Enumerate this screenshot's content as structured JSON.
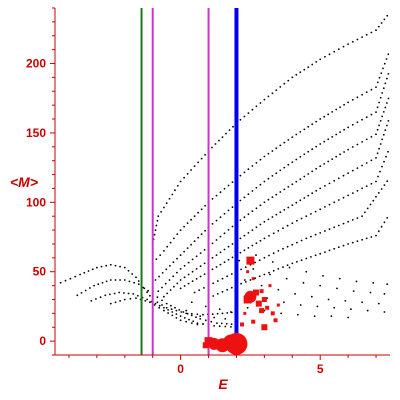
{
  "chart_data": {
    "type": "scatter",
    "title": "",
    "xlabel": "E",
    "ylabel": "<M>",
    "xlim": [
      -4.5,
      7.5
    ],
    "ylim": [
      -10,
      240
    ],
    "xticks": [
      0,
      5
    ],
    "yticks": [
      0,
      50,
      100,
      150,
      200
    ],
    "grid": false,
    "colors": {
      "axis": "#cc0000",
      "branches": "#000000",
      "red_markers": "#ee1111",
      "green_line": "#1a7a1a",
      "magenta_lines": "#cc33cc",
      "blue_line": "#0000ee"
    },
    "series": [
      {
        "kind": "branches",
        "color": "#000000",
        "curves": [
          [
            [
              -4.3,
              42
            ],
            [
              -3.6,
              48
            ],
            [
              -3.0,
              53
            ],
            [
              -2.5,
              55
            ],
            [
              -2.0,
              53
            ],
            [
              -1.6,
              46
            ],
            [
              -1.3,
              38
            ],
            [
              -1.0,
              30
            ],
            [
              -0.5,
              24
            ],
            [
              0.2,
              20
            ],
            [
              0.8,
              19
            ],
            [
              1.5,
              20
            ],
            [
              2.0,
              21
            ]
          ],
          [
            [
              -3.7,
              33
            ],
            [
              -3.1,
              40
            ],
            [
              -2.5,
              44
            ],
            [
              -2.0,
              44
            ],
            [
              -1.5,
              41
            ],
            [
              -1.0,
              34
            ],
            [
              -0.5,
              27
            ],
            [
              0.1,
              21
            ],
            [
              0.7,
              16
            ],
            [
              1.3,
              13
            ],
            [
              2.0,
              12
            ]
          ],
          [
            [
              -3.2,
              29
            ],
            [
              -2.7,
              33
            ],
            [
              -2.2,
              35
            ],
            [
              -1.7,
              34
            ],
            [
              -1.2,
              30
            ],
            [
              -0.6,
              24
            ],
            [
              0.0,
              18
            ],
            [
              0.6,
              13
            ],
            [
              1.2,
              11
            ],
            [
              2.0,
              10
            ]
          ],
          [
            [
              -2.5,
              27
            ],
            [
              -2.0,
              30
            ],
            [
              -1.6,
              31
            ],
            [
              -1.1,
              28
            ],
            [
              -0.6,
              22
            ],
            [
              0.0,
              15
            ],
            [
              0.6,
              12
            ],
            [
              1.2,
              13
            ]
          ],
          [
            [
              -1.0,
              70
            ],
            [
              -0.8,
              90
            ],
            [
              0.0,
              115
            ],
            [
              1.0,
              137
            ],
            [
              2.0,
              157
            ],
            [
              3.0,
              174
            ],
            [
              4.0,
              190
            ],
            [
              5.0,
              203
            ],
            [
              6.0,
              214
            ],
            [
              7.0,
              224
            ],
            [
              7.5,
              237
            ]
          ],
          [
            [
              -1.0,
              56
            ],
            [
              -0.6,
              65
            ],
            [
              0.0,
              80
            ],
            [
              1.0,
              100
            ],
            [
              2.0,
              117
            ],
            [
              3.0,
              133
            ],
            [
              4.0,
              147
            ],
            [
              5.0,
              160
            ],
            [
              6.0,
              172
            ],
            [
              7.0,
              183
            ],
            [
              7.5,
              210
            ]
          ],
          [
            [
              -0.9,
              44
            ],
            [
              0.0,
              62
            ],
            [
              1.0,
              82
            ],
            [
              2.0,
              99
            ],
            [
              3.0,
              115
            ],
            [
              4.0,
              129
            ],
            [
              5.0,
              142
            ],
            [
              6.0,
              154
            ],
            [
              7.0,
              165
            ],
            [
              7.5,
              196
            ]
          ],
          [
            [
              -0.8,
              36
            ],
            [
              0.0,
              52
            ],
            [
              1.0,
              68
            ],
            [
              2.0,
              85
            ],
            [
              3.0,
              100
            ],
            [
              4.0,
              113
            ],
            [
              5.0,
              126
            ],
            [
              6.0,
              138
            ],
            [
              7.0,
              149
            ],
            [
              7.5,
              178
            ]
          ],
          [
            [
              -0.6,
              32
            ],
            [
              0.0,
              44
            ],
            [
              1.0,
              58
            ],
            [
              2.0,
              72
            ],
            [
              3.0,
              86
            ],
            [
              4.0,
              98
            ],
            [
              5.0,
              110
            ],
            [
              6.0,
              121
            ],
            [
              7.0,
              132
            ],
            [
              7.5,
              162
            ]
          ],
          [
            [
              0.0,
              38
            ],
            [
              1.0,
              50
            ],
            [
              2.0,
              62
            ],
            [
              3.0,
              74
            ],
            [
              4.0,
              85
            ],
            [
              5.0,
              95
            ],
            [
              6.0,
              105
            ],
            [
              7.0,
              115
            ],
            [
              7.5,
              140
            ]
          ],
          [
            [
              0.5,
              35
            ],
            [
              1.5,
              45
            ],
            [
              2.5,
              55
            ],
            [
              3.5,
              65
            ],
            [
              4.5,
              74
            ],
            [
              5.5,
              82
            ],
            [
              6.5,
              90
            ],
            [
              7.5,
              118
            ]
          ],
          [
            [
              1.0,
              31
            ],
            [
              2.0,
              40
            ],
            [
              3.0,
              48
            ],
            [
              4.0,
              56
            ],
            [
              5.0,
              63
            ],
            [
              6.0,
              70
            ],
            [
              7.0,
              76
            ],
            [
              7.5,
              92
            ]
          ]
        ],
        "scatter": [
          [
            2.1,
            58
          ],
          [
            2.6,
            52
          ],
          [
            3.2,
            48
          ],
          [
            3.8,
            45
          ],
          [
            4.4,
            42
          ],
          [
            5.0,
            40
          ],
          [
            5.6,
            38
          ],
          [
            6.2,
            36
          ],
          [
            6.8,
            35
          ],
          [
            7.3,
            34
          ],
          [
            2.3,
            44
          ],
          [
            2.9,
            40
          ],
          [
            3.5,
            37
          ],
          [
            4.1,
            34
          ],
          [
            4.7,
            32
          ],
          [
            5.3,
            30
          ],
          [
            5.9,
            29
          ],
          [
            6.5,
            28
          ],
          [
            7.1,
            27
          ],
          [
            2.5,
            34
          ],
          [
            3.1,
            31
          ],
          [
            3.7,
            28
          ],
          [
            4.3,
            26
          ],
          [
            4.9,
            25
          ],
          [
            5.5,
            24
          ],
          [
            6.1,
            23
          ],
          [
            6.7,
            22
          ],
          [
            7.3,
            21
          ],
          [
            2.4,
            24
          ],
          [
            3.0,
            22
          ],
          [
            3.6,
            20
          ],
          [
            4.2,
            19
          ],
          [
            4.8,
            18
          ],
          [
            5.4,
            18
          ],
          [
            6.0,
            17
          ],
          [
            2.7,
            62
          ],
          [
            3.3,
            57
          ],
          [
            3.9,
            53
          ],
          [
            4.5,
            50
          ],
          [
            5.1,
            47
          ],
          [
            5.7,
            45
          ],
          [
            6.3,
            43
          ],
          [
            6.9,
            42
          ],
          [
            7.4,
            41
          ],
          [
            0.4,
            28
          ],
          [
            0.9,
            25
          ],
          [
            1.4,
            23
          ],
          [
            1.8,
            21
          ],
          [
            0.2,
            22
          ],
          [
            0.7,
            18
          ],
          [
            1.2,
            17
          ],
          [
            1.6,
            16
          ]
        ]
      },
      {
        "kind": "markers",
        "color": "#ee1111",
        "points": [
          {
            "x": 2.0,
            "y": -2,
            "size": 11
          },
          {
            "x": 1.8,
            "y": -1,
            "size": 8
          },
          {
            "x": 1.5,
            "y": -3,
            "size": 7
          },
          {
            "x": 1.2,
            "y": -2,
            "size": 6
          },
          {
            "x": 1.0,
            "y": 0,
            "size": 4
          },
          {
            "x": 0.9,
            "y": -3,
            "size": 3
          },
          {
            "x": 2.5,
            "y": 58,
            "size": 4
          },
          {
            "x": 2.5,
            "y": 32,
            "size": 6
          },
          {
            "x": 2.4,
            "y": 30,
            "size": 4
          },
          {
            "x": 2.7,
            "y": 35,
            "size": 3
          },
          {
            "x": 2.8,
            "y": 27,
            "size": 3
          },
          {
            "x": 3.0,
            "y": 30,
            "size": 2.5
          },
          {
            "x": 2.9,
            "y": 22,
            "size": 2.5
          },
          {
            "x": 3.1,
            "y": 24,
            "size": 2
          },
          {
            "x": 3.0,
            "y": 10,
            "size": 3
          },
          {
            "x": 3.3,
            "y": 20,
            "size": 2
          },
          {
            "x": 3.4,
            "y": 15,
            "size": 2
          },
          {
            "x": 2.6,
            "y": 14,
            "size": 2
          },
          {
            "x": 2.9,
            "y": 36,
            "size": 2
          },
          {
            "x": 2.2,
            "y": 12,
            "size": 2
          },
          {
            "x": 2.4,
            "y": 50,
            "size": 1.5
          },
          {
            "x": 3.2,
            "y": 40,
            "size": 1.5
          },
          {
            "x": 2.6,
            "y": 45,
            "size": 1.5
          },
          {
            "x": 3.5,
            "y": 26,
            "size": 1.5
          },
          {
            "x": 2.3,
            "y": 20,
            "size": 1.5
          }
        ]
      }
    ],
    "vertical_lines": [
      {
        "x": -1.4,
        "color": "#1a7a1a",
        "width": 2
      },
      {
        "x": -1.0,
        "color": "#cc33cc",
        "width": 2
      },
      {
        "x": 1.0,
        "color": "#cc33cc",
        "width": 2
      },
      {
        "x": 2.0,
        "color": "#0000ee",
        "width": 4
      }
    ]
  }
}
